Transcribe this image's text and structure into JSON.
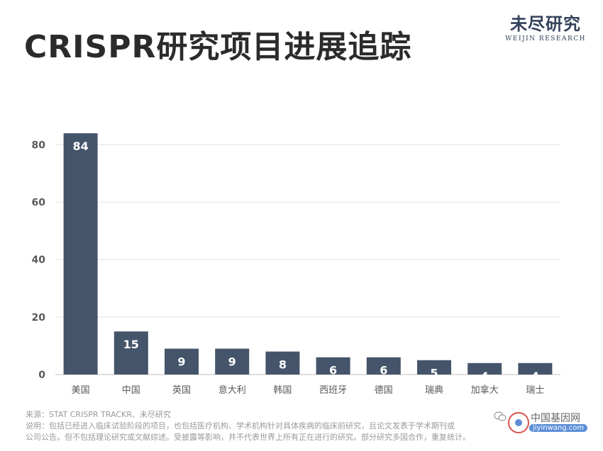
{
  "title": "CRISPR研究项目进展追踪",
  "logo": {
    "main": "未尽研究",
    "sub": "WEIJIN RESEARCH"
  },
  "chart_data": {
    "type": "bar",
    "categories": [
      "美国",
      "中国",
      "英国",
      "意大利",
      "韩国",
      "西班牙",
      "德国",
      "瑞典",
      "加拿大",
      "瑞士"
    ],
    "values": [
      84,
      15,
      9,
      9,
      8,
      6,
      6,
      5,
      4,
      4
    ],
    "yticks": [
      "0",
      "20",
      "40",
      "60",
      "80"
    ],
    "ylim": [
      0,
      88
    ],
    "bar_color": "#44546a",
    "label_color": "#ffffff",
    "grid": true
  },
  "notes": {
    "source": "来源：STAT CRISPR TRACKR、未尽研究",
    "desc_1": "说明：包括已经进入临床试验阶段的项目，也包括医疗机构、学术机构针对具体疾病的临床前研究，且论文发表于学术期刊或",
    "desc_2": "公司公告。但不包括理论研究或文献综述。受披露等影响，并不代表世界上所有正在进行的研究。部分研究多国合作，重复统计。"
  },
  "watermark": {
    "cn": "中国基因网",
    "url": "jiyinwang.com"
  },
  "icons": {
    "wechat": "wechat-icon",
    "watermark": "watermark-logo-icon"
  }
}
